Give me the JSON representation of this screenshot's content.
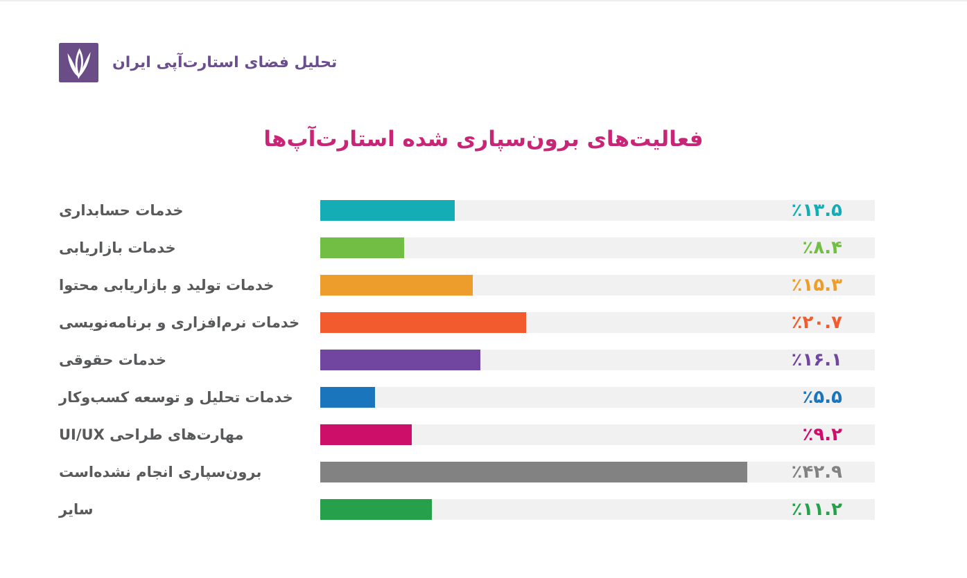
{
  "header": {
    "brand": "تحلیل فضای استارت‌آپی ایران",
    "brand_color": "#6B4E8E",
    "logo_color": "#6A4D87"
  },
  "title": {
    "text": "فعالیت‌های برون‌سپاری شده استارت‌آپ‌ها",
    "color": "#C92577"
  },
  "chart_data": {
    "type": "bar",
    "orientation": "horizontal",
    "title": "فعالیت‌های برون‌سپاری شده استارت‌آپ‌ها",
    "categories": [
      "خدمات حسابداری",
      "خدمات بازاریابی",
      "خدمات تولید و بازاریابی محتوا",
      "خدمات نرم‌افزاری و برنامه‌نویسی",
      "خدمات حقوقی",
      "خدمات تحلیل و توسعه کسب‌وکار",
      "مهارت‌های طراحی UI/UX",
      "برون‌سپاری انجام نشده‌است",
      "سایر"
    ],
    "values": [
      13.5,
      8.4,
      15.3,
      20.7,
      16.1,
      5.5,
      9.2,
      42.9,
      11.2
    ],
    "value_labels": [
      "٪۱۳.۵",
      "٪۸.۴",
      "٪۱۵.۳",
      "٪۲۰.۷",
      "٪۱۶.۱",
      "٪۵.۵",
      "٪۹.۲",
      "٪۴۲.۹",
      "٪۱۱.۲"
    ],
    "colors": [
      "#14ADB5",
      "#72BE44",
      "#EC9D2C",
      "#F15B2E",
      "#7046A1",
      "#1B75BC",
      "#CE0F69",
      "#828282",
      "#27A04C"
    ],
    "track_color": "#F1F1F2",
    "label_color": "#58595B",
    "xlim": [
      0,
      55.7
    ],
    "xlabel": "",
    "ylabel": "",
    "grid": false,
    "legend": "none",
    "unit": "percent"
  }
}
